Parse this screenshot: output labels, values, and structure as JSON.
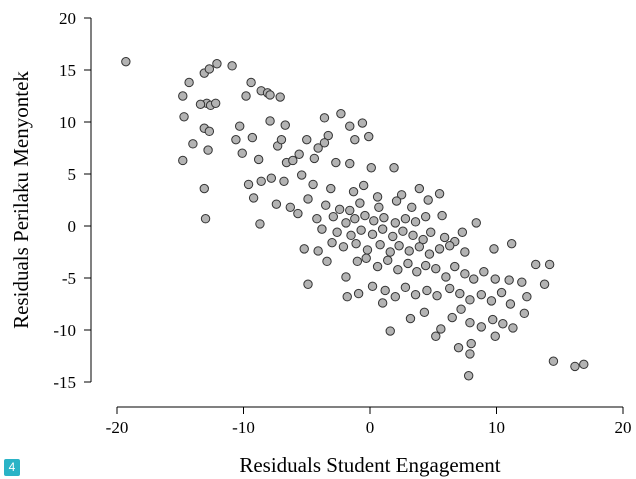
{
  "chart_data": {
    "type": "scatter",
    "title": "",
    "xlabel": "Residuals Student Engagement",
    "ylabel": "Residuals Perilaku Menyontek",
    "xlim": [
      -20,
      20
    ],
    "ylim": [
      -15,
      20
    ],
    "xticks": [
      -20,
      -10,
      0,
      10,
      20
    ],
    "yticks": [
      -15,
      -10,
      -5,
      0,
      5,
      10,
      15,
      20
    ],
    "grid": false,
    "marker_fill": "#b3b3b3",
    "marker_edge": "#333333",
    "points": [
      [
        -19.3,
        15.8
      ],
      [
        -14.8,
        12.5
      ],
      [
        -14.3,
        13.8
      ],
      [
        -13.1,
        14.7
      ],
      [
        -12.7,
        15.1
      ],
      [
        -12.1,
        15.6
      ],
      [
        -10.9,
        15.4
      ],
      [
        -9.4,
        13.8
      ],
      [
        -8.6,
        13.0
      ],
      [
        -8.1,
        12.8
      ],
      [
        -9.8,
        12.5
      ],
      [
        -7.9,
        12.6
      ],
      [
        -7.1,
        12.4
      ],
      [
        -14.7,
        10.5
      ],
      [
        -12.9,
        11.8
      ],
      [
        -12.6,
        11.6
      ],
      [
        -12.2,
        11.8
      ],
      [
        -13.4,
        11.7
      ],
      [
        -7.9,
        10.1
      ],
      [
        -6.7,
        9.7
      ],
      [
        -3.6,
        10.4
      ],
      [
        -2.3,
        10.8
      ],
      [
        -0.6,
        9.9
      ],
      [
        -1.6,
        9.6
      ],
      [
        -13.1,
        9.4
      ],
      [
        -12.7,
        9.1
      ],
      [
        -10.3,
        9.6
      ],
      [
        -10.6,
        8.3
      ],
      [
        -9.3,
        8.5
      ],
      [
        -14.0,
        7.9
      ],
      [
        -12.8,
        7.3
      ],
      [
        -10.1,
        7.0
      ],
      [
        -7.3,
        7.7
      ],
      [
        -7.0,
        8.3
      ],
      [
        -5.6,
        6.9
      ],
      [
        -4.1,
        7.5
      ],
      [
        -3.3,
        8.7
      ],
      [
        -1.2,
        8.3
      ],
      [
        -0.1,
        8.6
      ],
      [
        -3.6,
        8.0
      ],
      [
        -5.0,
        8.3
      ],
      [
        -14.8,
        6.3
      ],
      [
        -8.8,
        6.4
      ],
      [
        -6.6,
        6.1
      ],
      [
        -6.1,
        6.3
      ],
      [
        -4.4,
        6.5
      ],
      [
        -2.7,
        6.1
      ],
      [
        -1.6,
        6.0
      ],
      [
        0.1,
        5.6
      ],
      [
        1.9,
        5.6
      ],
      [
        -13.1,
        3.6
      ],
      [
        -9.6,
        4.0
      ],
      [
        -8.6,
        4.3
      ],
      [
        -7.8,
        4.6
      ],
      [
        -6.8,
        4.3
      ],
      [
        -5.4,
        4.9
      ],
      [
        -4.5,
        4.0
      ],
      [
        -3.1,
        3.6
      ],
      [
        -1.3,
        3.3
      ],
      [
        -0.5,
        3.9
      ],
      [
        0.6,
        2.8
      ],
      [
        2.5,
        3.0
      ],
      [
        3.9,
        3.6
      ],
      [
        5.5,
        3.1
      ],
      [
        -9.2,
        2.7
      ],
      [
        -7.4,
        2.1
      ],
      [
        -6.3,
        1.8
      ],
      [
        -4.9,
        2.6
      ],
      [
        -3.5,
        2.0
      ],
      [
        -2.4,
        1.6
      ],
      [
        -1.6,
        1.5
      ],
      [
        -0.8,
        2.2
      ],
      [
        0.7,
        1.8
      ],
      [
        2.1,
        2.4
      ],
      [
        3.3,
        1.8
      ],
      [
        4.6,
        2.5
      ],
      [
        -13.0,
        0.7
      ],
      [
        -8.7,
        0.2
      ],
      [
        -5.7,
        1.2
      ],
      [
        -4.2,
        0.7
      ],
      [
        -2.9,
        0.9
      ],
      [
        -1.9,
        0.3
      ],
      [
        -1.2,
        0.7
      ],
      [
        -0.4,
        1.0
      ],
      [
        0.3,
        0.5
      ],
      [
        1.1,
        0.8
      ],
      [
        2.0,
        0.3
      ],
      [
        2.8,
        0.7
      ],
      [
        3.6,
        0.4
      ],
      [
        4.4,
        0.9
      ],
      [
        5.7,
        1.0
      ],
      [
        8.4,
        0.3
      ],
      [
        -3.8,
        -0.3
      ],
      [
        -2.6,
        -0.6
      ],
      [
        -1.5,
        -0.9
      ],
      [
        -0.7,
        -0.4
      ],
      [
        0.2,
        -0.8
      ],
      [
        1.0,
        -0.3
      ],
      [
        1.8,
        -1.0
      ],
      [
        2.6,
        -0.5
      ],
      [
        3.4,
        -0.9
      ],
      [
        4.2,
        -1.3
      ],
      [
        4.8,
        -0.6
      ],
      [
        5.9,
        -1.1
      ],
      [
        6.7,
        -1.5
      ],
      [
        7.3,
        -0.6
      ],
      [
        -5.2,
        -2.2
      ],
      [
        -4.1,
        -2.4
      ],
      [
        -3.0,
        -1.6
      ],
      [
        -2.1,
        -2.0
      ],
      [
        -1.1,
        -1.7
      ],
      [
        -0.2,
        -2.3
      ],
      [
        0.8,
        -1.8
      ],
      [
        1.6,
        -2.5
      ],
      [
        2.3,
        -1.9
      ],
      [
        3.1,
        -2.4
      ],
      [
        3.9,
        -2.0
      ],
      [
        4.7,
        -2.7
      ],
      [
        5.5,
        -2.2
      ],
      [
        6.3,
        -1.9
      ],
      [
        7.5,
        -2.5
      ],
      [
        9.8,
        -2.2
      ],
      [
        11.2,
        -1.7
      ],
      [
        -4.9,
        -5.6
      ],
      [
        -3.4,
        -3.4
      ],
      [
        -1.9,
        -4.9
      ],
      [
        -1.0,
        -3.4
      ],
      [
        -0.3,
        -3.1
      ],
      [
        0.6,
        -3.9
      ],
      [
        1.4,
        -3.3
      ],
      [
        2.2,
        -4.2
      ],
      [
        3.0,
        -3.6
      ],
      [
        3.7,
        -4.4
      ],
      [
        4.4,
        -3.8
      ],
      [
        5.2,
        -4.1
      ],
      [
        6.0,
        -4.9
      ],
      [
        6.7,
        -3.9
      ],
      [
        7.5,
        -4.6
      ],
      [
        8.2,
        -5.1
      ],
      [
        9.0,
        -4.4
      ],
      [
        9.9,
        -5.1
      ],
      [
        11.0,
        -5.2
      ],
      [
        12.0,
        -5.4
      ],
      [
        13.1,
        -3.7
      ],
      [
        14.2,
        -3.7
      ],
      [
        -1.8,
        -6.8
      ],
      [
        -0.9,
        -6.5
      ],
      [
        0.2,
        -5.8
      ],
      [
        1.2,
        -6.2
      ],
      [
        2.0,
        -6.8
      ],
      [
        2.8,
        -5.9
      ],
      [
        3.6,
        -6.6
      ],
      [
        4.5,
        -6.2
      ],
      [
        5.3,
        -6.7
      ],
      [
        6.3,
        -6.0
      ],
      [
        7.1,
        -6.5
      ],
      [
        7.9,
        -7.1
      ],
      [
        8.8,
        -6.6
      ],
      [
        9.6,
        -7.2
      ],
      [
        10.4,
        -6.4
      ],
      [
        11.1,
        -7.5
      ],
      [
        12.4,
        -6.8
      ],
      [
        13.8,
        -5.6
      ],
      [
        1.0,
        -7.4
      ],
      [
        3.2,
        -8.9
      ],
      [
        4.3,
        -8.3
      ],
      [
        5.6,
        -9.9
      ],
      [
        6.5,
        -8.8
      ],
      [
        7.2,
        -8.0
      ],
      [
        7.9,
        -9.3
      ],
      [
        8.8,
        -9.7
      ],
      [
        9.7,
        -9.0
      ],
      [
        10.5,
        -9.4
      ],
      [
        11.3,
        -9.8
      ],
      [
        12.2,
        -8.4
      ],
      [
        1.6,
        -10.1
      ],
      [
        5.2,
        -10.6
      ],
      [
        7.0,
        -11.7
      ],
      [
        8.0,
        -11.3
      ],
      [
        9.9,
        -10.6
      ],
      [
        7.9,
        -12.3
      ],
      [
        7.8,
        -14.4
      ],
      [
        14.5,
        -13.0
      ],
      [
        16.2,
        -13.5
      ],
      [
        16.9,
        -13.3
      ]
    ]
  }
}
